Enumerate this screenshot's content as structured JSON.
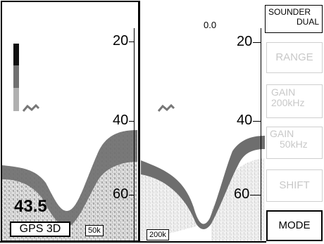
{
  "left_panel": {
    "depth_readout": "43.5",
    "gps_label": "GPS 3D",
    "freq_label": "50k"
  },
  "right_panel": {
    "freq_label": "200k",
    "shift_value": "0.0"
  },
  "scale": {
    "labels": [
      "20",
      "40",
      "60"
    ]
  },
  "menu": {
    "title_line1": "SOUNDER",
    "title_line2": "DUAL",
    "buttons": [
      {
        "label": "RANGE",
        "active": false
      },
      {
        "label_line1": "GAIN",
        "label_line2": "200kHz",
        "active": false
      },
      {
        "label_line1": "GAIN",
        "label_line2": "50kHz",
        "active": false
      },
      {
        "label": "SHIFT",
        "active": false
      },
      {
        "label": "MODE",
        "active": true
      }
    ]
  },
  "colors": {
    "strong_echo": "#6e6e6e",
    "weak_echo": "#c4c4c4",
    "bar_dark": "#111111",
    "bar_mid": "#707070",
    "bar_light": "#b0b0b0"
  }
}
